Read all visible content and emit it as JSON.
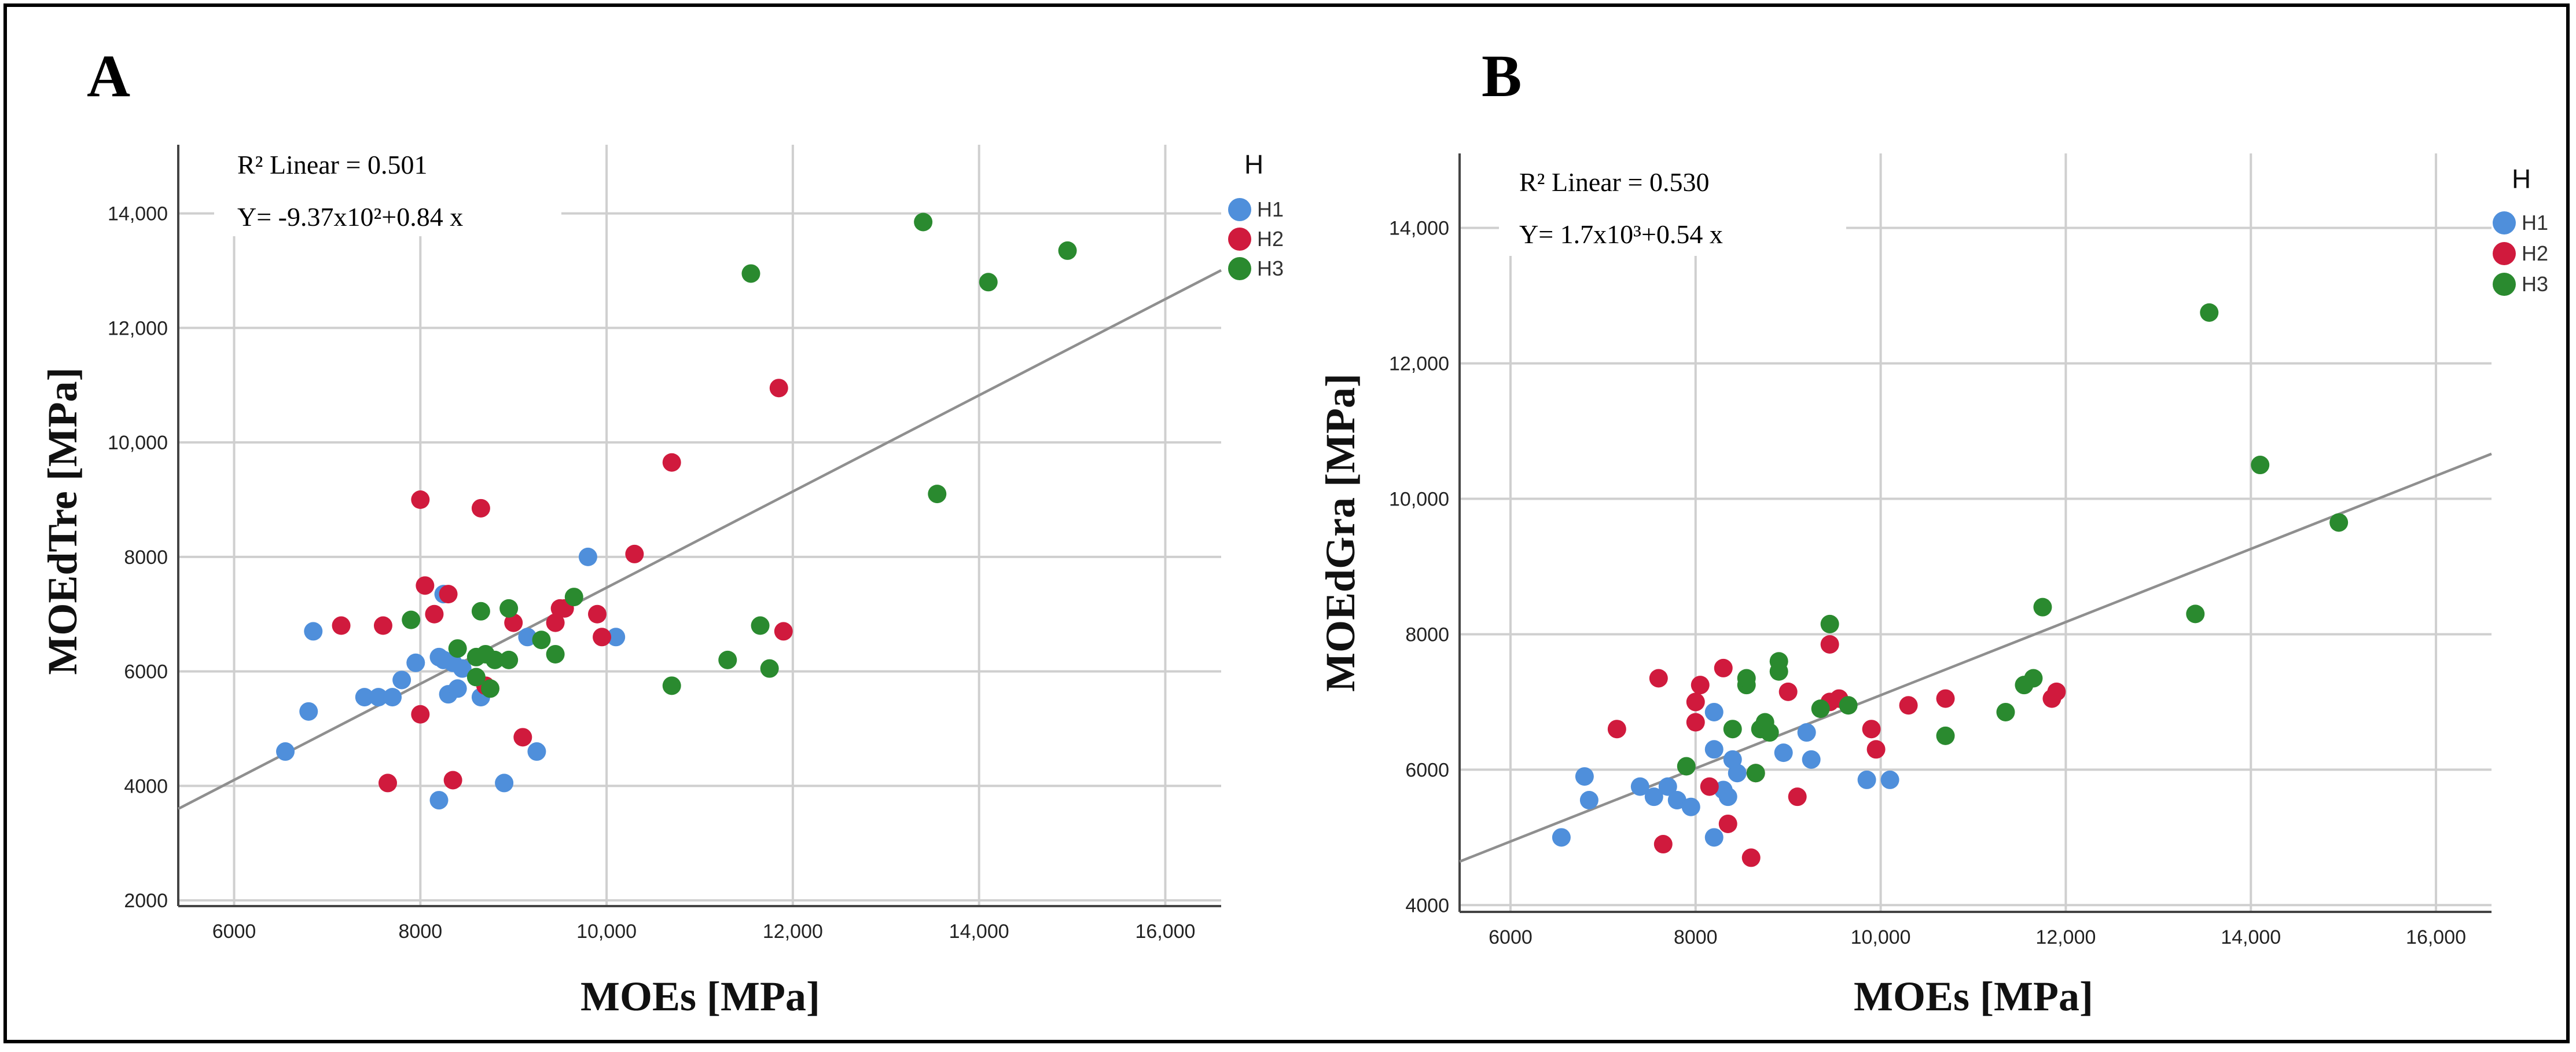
{
  "colors": {
    "H1": "#4f8fdb",
    "H2": "#d01a3d",
    "H3": "#2a8a2f",
    "fit": "#8f8f8f"
  },
  "chart_data": [
    {
      "panel": "A",
      "type": "scatter",
      "xlabel": "MOEs [MPa]",
      "ylabel": "MOEdTre [MPa]",
      "xlim": [
        5400,
        16600
      ],
      "ylim": [
        1900,
        15200
      ],
      "xticks": [
        6000,
        8000,
        10000,
        12000,
        14000,
        16000
      ],
      "xtick_labels": [
        "6000",
        "8000",
        "10,000",
        "12,000",
        "14,000",
        "16,000"
      ],
      "yticks": [
        2000,
        4000,
        6000,
        8000,
        10000,
        12000,
        14000
      ],
      "ytick_labels": [
        "2000",
        "4000",
        "6000",
        "8000",
        "10,000",
        "12,000",
        "14,000"
      ],
      "r2_text": "R² Linear = 0.501",
      "eq_text": "Y= -9.37x10²+0.84 x",
      "fit": {
        "intercept": -937,
        "slope": 0.84
      },
      "legend": {
        "title": "H",
        "entries": [
          "H1",
          "H2",
          "H3"
        ]
      },
      "series": [
        {
          "name": "H1",
          "points": [
            [
              6550,
              4600
            ],
            [
              6800,
              5300
            ],
            [
              6850,
              6700
            ],
            [
              7400,
              5550
            ],
            [
              7550,
              5550
            ],
            [
              7700,
              5550
            ],
            [
              7800,
              5850
            ],
            [
              7950,
              6150
            ],
            [
              8200,
              6250
            ],
            [
              8250,
              6200
            ],
            [
              8300,
              5600
            ],
            [
              8350,
              6150
            ],
            [
              8400,
              5700
            ],
            [
              8450,
              6050
            ],
            [
              8200,
              3750
            ],
            [
              8650,
              5550
            ],
            [
              8900,
              4050
            ],
            [
              9150,
              6600
            ],
            [
              9250,
              4600
            ],
            [
              9800,
              8000
            ],
            [
              10100,
              6600
            ],
            [
              8250,
              7350
            ]
          ]
        },
        {
          "name": "H2",
          "points": [
            [
              7150,
              6800
            ],
            [
              7600,
              6800
            ],
            [
              7650,
              4050
            ],
            [
              8000,
              5250
            ],
            [
              8000,
              9000
            ],
            [
              8050,
              7500
            ],
            [
              8150,
              7000
            ],
            [
              8300,
              7350
            ],
            [
              8350,
              4100
            ],
            [
              8650,
              8850
            ],
            [
              8700,
              5750
            ],
            [
              9000,
              6850
            ],
            [
              9100,
              4850
            ],
            [
              9450,
              6850
            ],
            [
              9500,
              7100
            ],
            [
              9550,
              7100
            ],
            [
              9900,
              7000
            ],
            [
              9950,
              6600
            ],
            [
              10300,
              8050
            ],
            [
              10700,
              9650
            ],
            [
              11850,
              10950
            ],
            [
              11900,
              6700
            ]
          ]
        },
        {
          "name": "H3",
          "points": [
            [
              7900,
              6900
            ],
            [
              8400,
              6400
            ],
            [
              8600,
              6250
            ],
            [
              8600,
              5900
            ],
            [
              8650,
              7050
            ],
            [
              8700,
              6300
            ],
            [
              8750,
              5700
            ],
            [
              8800,
              6200
            ],
            [
              8950,
              7100
            ],
            [
              8950,
              6200
            ],
            [
              9300,
              6550
            ],
            [
              9450,
              6300
            ],
            [
              9650,
              7300
            ],
            [
              10700,
              5750
            ],
            [
              11300,
              6200
            ],
            [
              11550,
              12950
            ],
            [
              11650,
              6800
            ],
            [
              11750,
              6050
            ],
            [
              13400,
              13850
            ],
            [
              13550,
              9100
            ],
            [
              14100,
              12800
            ],
            [
              14950,
              13350
            ]
          ]
        }
      ]
    },
    {
      "panel": "B",
      "type": "scatter",
      "xlabel": "MOEs [MPa]",
      "ylabel": "MOEdGra [MPa]",
      "xlim": [
        5450,
        16600
      ],
      "ylim": [
        3900,
        15100
      ],
      "xticks": [
        6000,
        8000,
        10000,
        12000,
        14000,
        16000
      ],
      "xtick_labels": [
        "6000",
        "8000",
        "10,000",
        "12,000",
        "14,000",
        "16,000"
      ],
      "yticks": [
        4000,
        6000,
        8000,
        10000,
        12000,
        14000
      ],
      "ytick_labels": [
        "4000",
        "6000",
        "8000",
        "10,000",
        "12,000",
        "14,000"
      ],
      "r2_text": "R² Linear = 0.530",
      "eq_text": "Y= 1.7x10³+0.54 x",
      "fit": {
        "intercept": 1700,
        "slope": 0.54
      },
      "legend": {
        "title": "H",
        "entries": [
          "H1",
          "H2",
          "H3"
        ]
      },
      "series": [
        {
          "name": "H1",
          "points": [
            [
              6550,
              5000
            ],
            [
              6800,
              5900
            ],
            [
              6850,
              5550
            ],
            [
              7400,
              5750
            ],
            [
              7550,
              5600
            ],
            [
              7700,
              5750
            ],
            [
              7800,
              5550
            ],
            [
              7950,
              5450
            ],
            [
              8200,
              6300
            ],
            [
              8200,
              5000
            ],
            [
              8300,
              5700
            ],
            [
              8350,
              5600
            ],
            [
              8400,
              6150
            ],
            [
              8450,
              5950
            ],
            [
              8950,
              6250
            ],
            [
              9250,
              6150
            ],
            [
              9200,
              6550
            ],
            [
              9850,
              5850
            ],
            [
              10100,
              5850
            ],
            [
              8200,
              6850
            ]
          ]
        },
        {
          "name": "H2",
          "points": [
            [
              7150,
              6600
            ],
            [
              7600,
              7350
            ],
            [
              7650,
              4900
            ],
            [
              8000,
              7000
            ],
            [
              8000,
              6700
            ],
            [
              8050,
              7250
            ],
            [
              8150,
              5750
            ],
            [
              8300,
              7500
            ],
            [
              8350,
              5200
            ],
            [
              8600,
              4700
            ],
            [
              8650,
              5950
            ],
            [
              9000,
              7150
            ],
            [
              9100,
              5600
            ],
            [
              9450,
              7000
            ],
            [
              9450,
              7850
            ],
            [
              9550,
              7050
            ],
            [
              9900,
              6600
            ],
            [
              9950,
              6300
            ],
            [
              10300,
              6950
            ],
            [
              10700,
              7050
            ],
            [
              11850,
              7050
            ],
            [
              11900,
              7150
            ]
          ]
        },
        {
          "name": "H3",
          "points": [
            [
              7900,
              6050
            ],
            [
              8400,
              6600
            ],
            [
              8550,
              7250
            ],
            [
              8550,
              7350
            ],
            [
              8650,
              5950
            ],
            [
              8700,
              6600
            ],
            [
              8750,
              6700
            ],
            [
              8800,
              6550
            ],
            [
              8900,
              7600
            ],
            [
              8900,
              7450
            ],
            [
              9350,
              6900
            ],
            [
              9450,
              8150
            ],
            [
              9650,
              6950
            ],
            [
              10700,
              6500
            ],
            [
              11350,
              6850
            ],
            [
              11550,
              7250
            ],
            [
              11650,
              7350
            ],
            [
              11750,
              8400
            ],
            [
              13400,
              8300
            ],
            [
              13550,
              12750
            ],
            [
              14100,
              10500
            ],
            [
              14950,
              9650
            ]
          ]
        }
      ]
    }
  ]
}
